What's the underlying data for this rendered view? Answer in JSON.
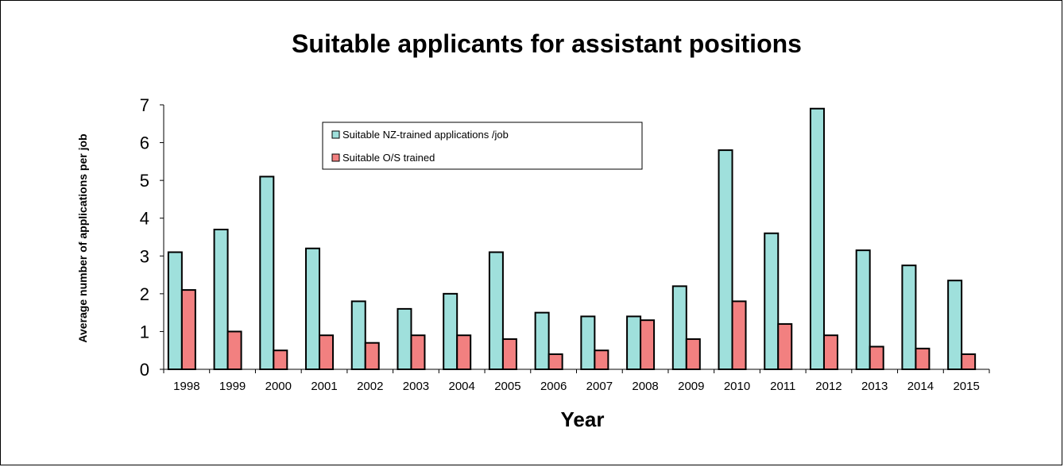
{
  "chart_data": {
    "type": "bar",
    "title": "Suitable applicants for assistant positions",
    "xlabel": "Year",
    "ylabel": "Average number of applications per job",
    "ylim": [
      0,
      7
    ],
    "yticks": [
      "0",
      "1",
      "2",
      "3",
      "4",
      "5",
      "6",
      "7"
    ],
    "grid": false,
    "legend_position": "top-left, inside plot",
    "categories": [
      "1998",
      "1999",
      "2000",
      "2001",
      "2002",
      "2003",
      "2004",
      "2005",
      "2006",
      "2007",
      "2008",
      "2009",
      "2010",
      "2011",
      "2012",
      "2013",
      "2014",
      "2015"
    ],
    "series": [
      {
        "name": "Suitable NZ-trained applications /job",
        "color": "#9fe0dc",
        "values": [
          3.1,
          3.7,
          5.1,
          3.2,
          1.8,
          1.6,
          2.0,
          3.1,
          1.5,
          1.4,
          1.4,
          2.2,
          5.8,
          3.6,
          6.9,
          3.15,
          2.75,
          2.35
        ]
      },
      {
        "name": "Suitable O/S trained",
        "color": "#f28080",
        "values": [
          2.1,
          1.0,
          0.5,
          0.9,
          0.7,
          0.9,
          0.9,
          0.8,
          0.4,
          0.5,
          1.3,
          0.8,
          1.8,
          1.2,
          0.9,
          0.6,
          0.55,
          0.4
        ]
      }
    ]
  }
}
